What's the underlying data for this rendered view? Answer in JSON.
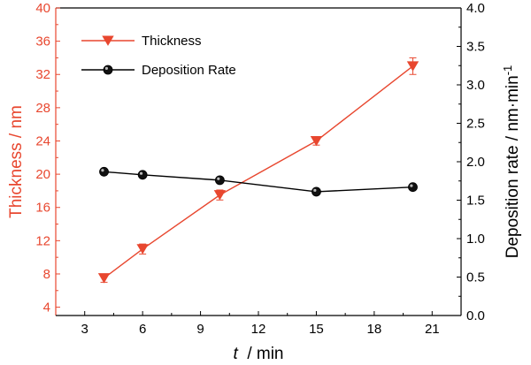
{
  "chart_data": {
    "type": "line",
    "x": [
      4,
      6,
      10,
      15,
      20
    ],
    "xlabel_italic": "t",
    "xlabel_unit": "/ min",
    "xlim": [
      1.5,
      22.5
    ],
    "xticks": [
      3,
      6,
      9,
      12,
      15,
      18,
      21
    ],
    "left_axis": {
      "label": "Thickness / nm",
      "color": "#e8472f",
      "ylim": [
        3,
        40
      ],
      "ticks": [
        4,
        8,
        12,
        16,
        20,
        24,
        28,
        32,
        36,
        40
      ]
    },
    "right_axis": {
      "label_main": "Deposition rate / nm·min",
      "label_sup": "-1",
      "color": "#000000",
      "ylim": [
        0,
        4
      ],
      "ticks": [
        "0.0",
        "0.5",
        "1.0",
        "1.5",
        "2.0",
        "2.5",
        "3.0",
        "3.5",
        "4.0"
      ]
    },
    "series": [
      {
        "name": "Thickness",
        "axis": "left",
        "color": "#e8472f",
        "marker": "triangle-down",
        "values": [
          7.5,
          11,
          17.5,
          24,
          33
        ],
        "errors": [
          0.5,
          0.6,
          0.6,
          0.5,
          1.0
        ]
      },
      {
        "name": "Deposition Rate",
        "axis": "right",
        "color": "#000000",
        "marker": "circle",
        "values": [
          1.87,
          1.83,
          1.76,
          1.61,
          1.67
        ]
      }
    ],
    "legend_position": "top-left",
    "grid": false
  }
}
